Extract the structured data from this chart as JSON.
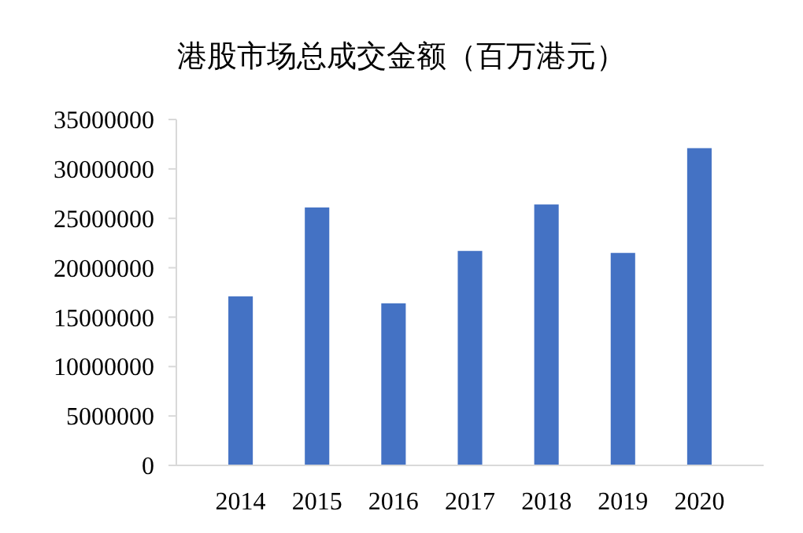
{
  "chart_data": {
    "type": "bar",
    "title": "港股市场总成交金额（百万港元）",
    "categories": [
      "2014",
      "2015",
      "2016",
      "2017",
      "2018",
      "2019",
      "2020"
    ],
    "values": [
      17100000,
      26100000,
      16400000,
      21700000,
      26400000,
      21500000,
      32100000
    ],
    "color": "#4472c4",
    "ylim": [
      0,
      35000000
    ],
    "yticks": [
      0,
      5000000,
      10000000,
      15000000,
      20000000,
      25000000,
      30000000,
      35000000
    ],
    "grid": false
  }
}
